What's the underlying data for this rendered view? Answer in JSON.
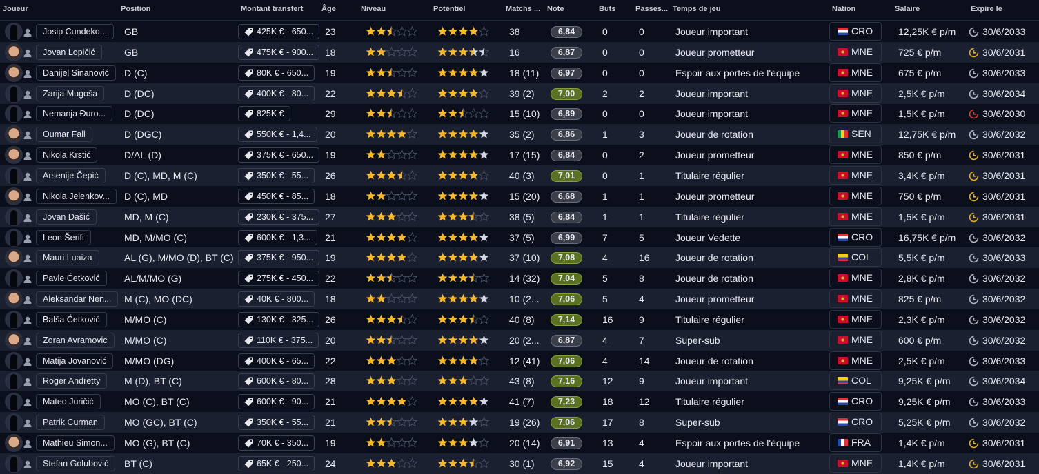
{
  "columns": [
    "Joueur",
    "Position",
    "Montant transfert",
    "Âge",
    "Niveau",
    "Potentiel",
    "Matchs ...",
    "Note",
    "Buts",
    "Passes...",
    "Temps de jeu",
    "Nation",
    "Salaire",
    "Expire le"
  ],
  "colors": {
    "star_gold": "#f5b82e",
    "star_potential": "#d4d7e3",
    "note_good": "#5a7022",
    "note_normal": "#3b3f4a",
    "expiry_yellow": "#e6b020",
    "expiry_red": "#e0403a",
    "expiry_gray": "#b5b8c2"
  },
  "players": [
    {
      "name": "Josip Cundeko...",
      "photo": false,
      "position": "GB",
      "transfer": "425K € - 650...",
      "age": "23",
      "level": 2.5,
      "pot": 4,
      "pot_max": 4,
      "matches": "38",
      "note": "6,84",
      "goals": "0",
      "assists": "0",
      "playing_time": "Joueur important",
      "nation": "CRO",
      "salary": "12,25K € p/m",
      "expires": "30/6/2033",
      "expiry_status": "gray"
    },
    {
      "name": "Jovan Lopičić",
      "photo": true,
      "position": "GB",
      "transfer": "475K € - 900...",
      "age": "18",
      "level": 2,
      "pot": 3.5,
      "pot_max": 4.5,
      "matches": "16",
      "note": "6,87",
      "goals": "0",
      "assists": "0",
      "playing_time": "Joueur prometteur",
      "nation": "MNE",
      "salary": "725 € p/m",
      "expires": "30/6/2031",
      "expiry_status": "yellow"
    },
    {
      "name": "Danijel Sinanović",
      "photo": true,
      "position": "D (C)",
      "transfer": "80K € - 650...",
      "age": "19",
      "level": 2.5,
      "pot": 4,
      "pot_max": 5,
      "matches": "18 (11)",
      "note": "6,97",
      "goals": "0",
      "assists": "0",
      "playing_time": "Espoir aux portes de l'équipe",
      "nation": "MNE",
      "salary": "675 € p/m",
      "expires": "30/6/2033",
      "expiry_status": "gray"
    },
    {
      "name": "Zarija Mugoša",
      "photo": false,
      "position": "D (DC)",
      "transfer": "400K € - 80...",
      "age": "22",
      "level": 3.5,
      "pot": 4,
      "pot_max": 4,
      "matches": "39 (2)",
      "note": "7,00",
      "goals": "2",
      "assists": "2",
      "playing_time": "Joueur important",
      "nation": "MNE",
      "salary": "2,5K € p/m",
      "expires": "30/6/2034",
      "expiry_status": "gray"
    },
    {
      "name": "Nemanja Đuro...",
      "photo": false,
      "position": "D (DC)",
      "transfer": "825K €",
      "age": "29",
      "level": 2.5,
      "pot": 2.5,
      "pot_max": 2.5,
      "matches": "15 (10)",
      "note": "6,89",
      "goals": "0",
      "assists": "0",
      "playing_time": "Joueur important",
      "nation": "MNE",
      "salary": "1,5K € p/m",
      "expires": "30/6/2030",
      "expiry_status": "red"
    },
    {
      "name": "Oumar Fall",
      "photo": true,
      "position": "D (DGC)",
      "transfer": "550K € - 1,4...",
      "age": "20",
      "level": 4,
      "pot": 4,
      "pot_max": 5,
      "matches": "35 (2)",
      "note": "6,86",
      "goals": "1",
      "assists": "3",
      "playing_time": "Joueur de rotation",
      "nation": "SEN",
      "salary": "12,75K € p/m",
      "expires": "30/6/2032",
      "expiry_status": "gray"
    },
    {
      "name": "Nikola Krstić",
      "photo": true,
      "position": "D/AL (D)",
      "transfer": "375K € - 650...",
      "age": "19",
      "level": 2,
      "pot": 4,
      "pot_max": 5,
      "matches": "17 (15)",
      "note": "6,84",
      "goals": "0",
      "assists": "2",
      "playing_time": "Joueur prometteur",
      "nation": "MNE",
      "salary": "850 € p/m",
      "expires": "30/6/2031",
      "expiry_status": "yellow"
    },
    {
      "name": "Arsenije Čepić",
      "photo": false,
      "position": "D (C), MD, M (C)",
      "transfer": "350K € - 55...",
      "age": "26",
      "level": 3.5,
      "pot": 4,
      "pot_max": 4,
      "matches": "40 (3)",
      "note": "7,01",
      "goals": "0",
      "assists": "1",
      "playing_time": "Titulaire régulier",
      "nation": "MNE",
      "salary": "3,4K € p/m",
      "expires": "30/6/2031",
      "expiry_status": "yellow"
    },
    {
      "name": "Nikola Jelenkov...",
      "photo": true,
      "position": "D (C), MD",
      "transfer": "450K € - 85...",
      "age": "18",
      "level": 2,
      "pot": 4,
      "pot_max": 5,
      "matches": "15 (20)",
      "note": "6,68",
      "goals": "1",
      "assists": "1",
      "playing_time": "Joueur prometteur",
      "nation": "MNE",
      "salary": "750 € p/m",
      "expires": "30/6/2031",
      "expiry_status": "yellow"
    },
    {
      "name": "Jovan Dašić",
      "photo": false,
      "position": "MD, M (C)",
      "transfer": "230K € - 375...",
      "age": "27",
      "level": 3,
      "pot": 3.5,
      "pot_max": 3.5,
      "matches": "38 (5)",
      "note": "6,84",
      "goals": "1",
      "assists": "1",
      "playing_time": "Titulaire régulier",
      "nation": "MNE",
      "salary": "1,5K € p/m",
      "expires": "30/6/2031",
      "expiry_status": "yellow"
    },
    {
      "name": "Leon Šerifi",
      "photo": false,
      "position": "MD, M/MO (C)",
      "transfer": "600K € - 1,3...",
      "age": "21",
      "level": 4,
      "pot": 4,
      "pot_max": 5,
      "matches": "37 (5)",
      "note": "6,99",
      "goals": "7",
      "assists": "5",
      "playing_time": "Joueur Vedette",
      "nation": "CRO",
      "salary": "16,75K € p/m",
      "expires": "30/6/2032",
      "expiry_status": "gray"
    },
    {
      "name": "Mauri Luaiza",
      "photo": true,
      "position": "AL (G), M/MO (D), BT (C)",
      "transfer": "375K € - 950...",
      "age": "19",
      "level": 4,
      "pot": 4,
      "pot_max": 5,
      "matches": "37 (10)",
      "note": "7,08",
      "goals": "4",
      "assists": "16",
      "playing_time": "Joueur de rotation",
      "nation": "COL",
      "salary": "5,5K € p/m",
      "expires": "30/6/2033",
      "expiry_status": "gray"
    },
    {
      "name": "Pavle Ćetković",
      "photo": false,
      "position": "AL/M/MO (G)",
      "transfer": "275K € - 450...",
      "age": "22",
      "level": 2.5,
      "pot": 3.5,
      "pot_max": 3.5,
      "matches": "14 (32)",
      "note": "7,04",
      "goals": "5",
      "assists": "8",
      "playing_time": "Joueur de rotation",
      "nation": "MNE",
      "salary": "2,8K € p/m",
      "expires": "30/6/2032",
      "expiry_status": "gray"
    },
    {
      "name": "Aleksandar Nen...",
      "photo": true,
      "position": "M (C), MO (DC)",
      "transfer": "40K € - 800...",
      "age": "18",
      "level": 2,
      "pot": 4,
      "pot_max": 5,
      "matches": "10 (2...",
      "note": "7,06",
      "goals": "5",
      "assists": "4",
      "playing_time": "Joueur prometteur",
      "nation": "MNE",
      "salary": "825 € p/m",
      "expires": "30/6/2032",
      "expiry_status": "gray"
    },
    {
      "name": "Balša Ćetković",
      "photo": false,
      "position": "M/MO (C)",
      "transfer": "130K € - 325...",
      "age": "26",
      "level": 3.5,
      "pot": 3.5,
      "pot_max": 3.5,
      "matches": "40 (8)",
      "note": "7,14",
      "goals": "16",
      "assists": "9",
      "playing_time": "Titulaire régulier",
      "nation": "MNE",
      "salary": "2,3K € p/m",
      "expires": "30/6/2032",
      "expiry_status": "gray"
    },
    {
      "name": "Zoran Avramovic",
      "photo": true,
      "position": "M/MO (C)",
      "transfer": "110K € - 375...",
      "age": "20",
      "level": 2.5,
      "pot": 4,
      "pot_max": 5,
      "matches": "20 (2...",
      "note": "6,87",
      "goals": "4",
      "assists": "7",
      "playing_time": "Super-sub",
      "nation": "MNE",
      "salary": "600 € p/m",
      "expires": "30/6/2032",
      "expiry_status": "gray"
    },
    {
      "name": "Matija Jovanović",
      "photo": false,
      "position": "M/MO (DG)",
      "transfer": "400K € - 65...",
      "age": "22",
      "level": 3,
      "pot": 4,
      "pot_max": 4,
      "matches": "12 (41)",
      "note": "7,06",
      "goals": "4",
      "assists": "14",
      "playing_time": "Joueur de rotation",
      "nation": "MNE",
      "salary": "2,5K € p/m",
      "expires": "30/6/2033",
      "expiry_status": "gray"
    },
    {
      "name": "Roger Andretty",
      "photo": false,
      "position": "M (D), BT (C)",
      "transfer": "600K € - 80...",
      "age": "28",
      "level": 3,
      "pot": 3,
      "pot_max": 3,
      "matches": "43 (8)",
      "note": "7,16",
      "goals": "12",
      "assists": "9",
      "playing_time": "Joueur important",
      "nation": "COL",
      "salary": "9,25K € p/m",
      "expires": "30/6/2034",
      "expiry_status": "gray"
    },
    {
      "name": "Mateo Juričić",
      "photo": false,
      "position": "MO (C), BT (C)",
      "transfer": "600K € - 90...",
      "age": "21",
      "level": 4,
      "pot": 4,
      "pot_max": 5,
      "matches": "41 (7)",
      "note": "7,23",
      "goals": "18",
      "assists": "12",
      "playing_time": "Titulaire régulier",
      "nation": "CRO",
      "salary": "9,25K € p/m",
      "expires": "30/6/2033",
      "expiry_status": "gray"
    },
    {
      "name": "Patrik Curman",
      "photo": false,
      "position": "MO (GC), BT (C)",
      "transfer": "350K € - 55...",
      "age": "21",
      "level": 2.5,
      "pot": 3,
      "pot_max": 4,
      "matches": "19 (26)",
      "note": "7,06",
      "goals": "17",
      "assists": "8",
      "playing_time": "Super-sub",
      "nation": "CRO",
      "salary": "5,25K € p/m",
      "expires": "30/6/2032",
      "expiry_status": "gray"
    },
    {
      "name": "Mathieu Simon...",
      "photo": true,
      "position": "MO (G), BT (C)",
      "transfer": "70K € - 350...",
      "age": "19",
      "level": 2,
      "pot": 3,
      "pot_max": 4,
      "matches": "20 (14)",
      "note": "6,91",
      "goals": "13",
      "assists": "4",
      "playing_time": "Espoir aux portes de l'équipe",
      "nation": "FRA",
      "salary": "1,4K € p/m",
      "expires": "30/6/2031",
      "expiry_status": "yellow"
    },
    {
      "name": "Stefan Golubović",
      "photo": false,
      "position": "BT (C)",
      "transfer": "65K € - 250...",
      "age": "24",
      "level": 3,
      "pot": 3.5,
      "pot_max": 3.5,
      "matches": "30 (1)",
      "note": "6,92",
      "goals": "15",
      "assists": "4",
      "playing_time": "Joueur important",
      "nation": "MNE",
      "salary": "1,4K € p/m",
      "expires": "30/6/2031",
      "expiry_status": "yellow"
    }
  ]
}
